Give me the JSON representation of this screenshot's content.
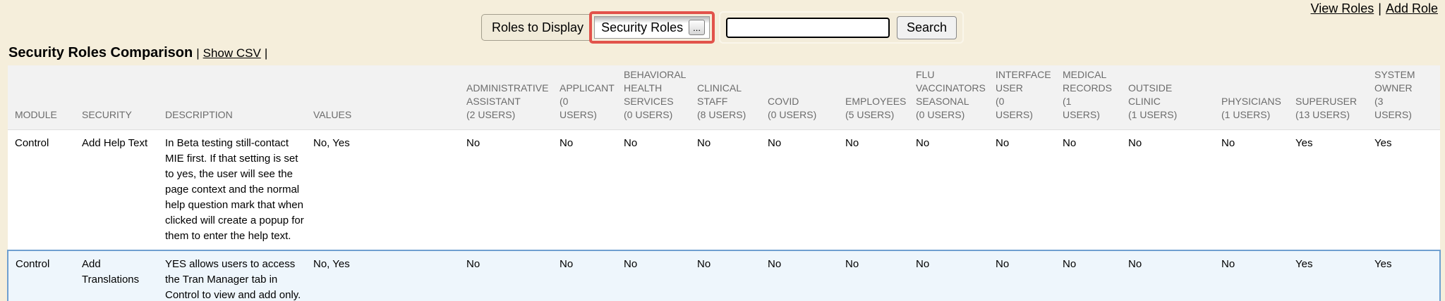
{
  "colors": {
    "page_background": "#f5eedb",
    "highlight_box": "#e2534b",
    "row_highlight_bg": "#eef6fc",
    "row_highlight_border": "#6f9fd0",
    "table_header_bg": "#f2f2f2",
    "table_header_text": "#6c6c6c"
  },
  "top_links": {
    "view_roles": "View Roles",
    "separator": "|",
    "add_role": "Add Role"
  },
  "toolbar": {
    "roles_to_display_label": "Roles to Display",
    "roles_select_value": "Security Roles",
    "ellipsis_button": "...",
    "search_input_value": "",
    "search_button": "Search"
  },
  "title": {
    "text": "Security Roles Comparison",
    "separator": "|",
    "show_csv_link": "Show CSV",
    "trailing_separator": "|"
  },
  "table": {
    "static_headers": [
      "MODULE",
      "SECURITY",
      "DESCRIPTION",
      "VALUES"
    ],
    "role_headers": [
      {
        "name": "ADMINISTRATIVE ASSISTANT",
        "users": "(2 USERS)"
      },
      {
        "name": "APPLICANT",
        "users": "(0 USERS)"
      },
      {
        "name": "BEHAVIORAL HEALTH SERVICES",
        "users": "(0 USERS)"
      },
      {
        "name": "CLINICAL STAFF",
        "users": "(8 USERS)"
      },
      {
        "name": "COVID",
        "users": "(0 USERS)"
      },
      {
        "name": "EMPLOYEES",
        "users": "(5 USERS)"
      },
      {
        "name": "FLU VACCINATORS SEASONAL",
        "users": "(0 USERS)"
      },
      {
        "name": "INTERFACE USER",
        "users": "(0 USERS)"
      },
      {
        "name": "MEDICAL RECORDS",
        "users": "(1 USERS)"
      },
      {
        "name": "OUTSIDE CLINIC",
        "users": "(1 USERS)"
      },
      {
        "name": "PHYSICIANS",
        "users": "(1 USERS)"
      },
      {
        "name": "SUPERUSER",
        "users": "(13 USERS)"
      },
      {
        "name": "SYSTEM OWNER",
        "users": "(3 USERS)"
      }
    ],
    "rows": [
      {
        "module": "Control",
        "security": "Add Help Text",
        "description": "In Beta testing still-contact MIE first. If that setting is set to yes, the user will see the page context and the normal help question mark that when clicked will create a popup for them to enter the help text.",
        "values": "No, Yes",
        "role_values": [
          "No",
          "No",
          "No",
          "No",
          "No",
          "No",
          "No",
          "No",
          "No",
          "No",
          "No",
          "Yes",
          "Yes"
        ],
        "highlighted": false
      },
      {
        "module": "Control",
        "security": "Add Translations",
        "description": "YES allows users to access the Tran Manager tab in Control to view and add only.",
        "values": "No, Yes",
        "role_values": [
          "No",
          "No",
          "No",
          "No",
          "No",
          "No",
          "No",
          "No",
          "No",
          "No",
          "No",
          "Yes",
          "Yes"
        ],
        "highlighted": true
      }
    ]
  }
}
